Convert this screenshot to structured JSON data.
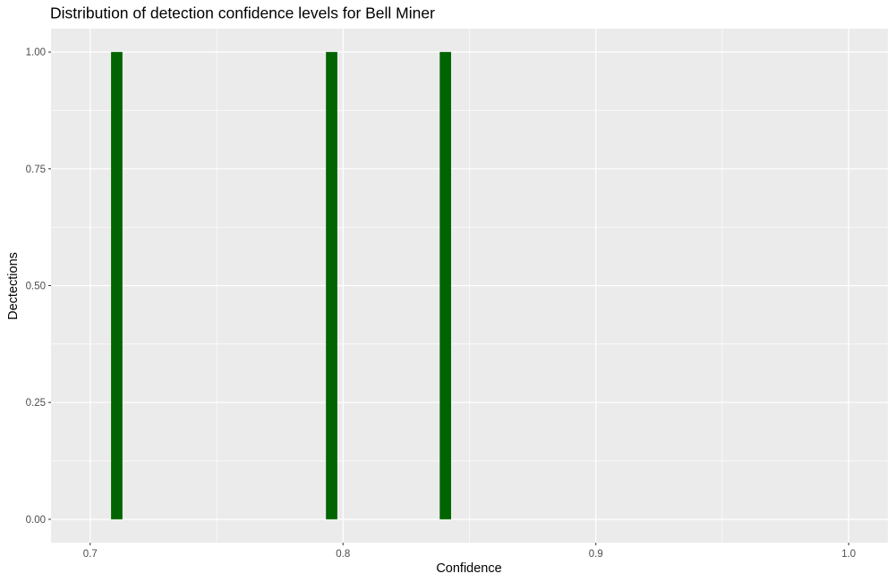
{
  "chart_data": {
    "type": "bar",
    "title": "Distribution of detection confidence levels for Bell Miner",
    "xlabel": "Confidence",
    "ylabel": "Dectections",
    "xlim": [
      0.6845,
      1.0155
    ],
    "ylim": [
      -0.05,
      1.05
    ],
    "x_ticks": [
      0.7,
      0.8,
      0.9,
      1.0
    ],
    "x_tick_labels": [
      "0.7",
      "0.8",
      "0.9",
      "1.0"
    ],
    "y_ticks": [
      0.0,
      0.25,
      0.5,
      0.75,
      1.0
    ],
    "y_tick_labels": [
      "0.00",
      "0.25",
      "0.50",
      "0.75",
      "1.00"
    ],
    "bin_width": 0.0045,
    "bars": [
      {
        "x": 0.7105,
        "value": 1
      },
      {
        "x": 0.7955,
        "value": 1
      },
      {
        "x": 0.8405,
        "value": 1
      }
    ],
    "grid": true,
    "colors": {
      "bar": "#006400",
      "panel_background": "#ebebeb",
      "grid_line": "#ffffff"
    }
  }
}
